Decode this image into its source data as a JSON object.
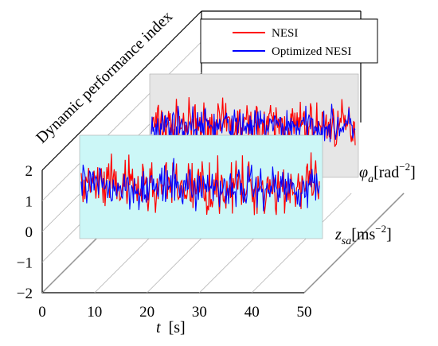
{
  "chart_data": {
    "type": "line",
    "title": "",
    "zlabel": "Dynamic performance index",
    "xlabel": {
      "main": "t",
      "unit": "[s]"
    },
    "xlim": [
      0,
      50
    ],
    "xticks": [
      "0",
      "10",
      "20",
      "30",
      "40",
      "50"
    ],
    "ylim": [
      -2,
      2
    ],
    "yticks": [
      "2",
      "1",
      "0",
      "−1",
      "−2"
    ],
    "depth_labels": [
      {
        "base": "φ",
        "sub": "a",
        "unit": "[rad",
        "exp": "−2",
        "close": "]"
      },
      {
        "base": "z",
        "sub": "sa",
        "unit": "[ms",
        "exp": "−2",
        "close": "]"
      }
    ],
    "legend": {
      "placement": "top-right",
      "entries": [
        {
          "label": "NESI",
          "color": "#ff0000"
        },
        {
          "label": "Optimized NESI",
          "color": "#0000ff"
        }
      ]
    },
    "panels": [
      {
        "label": "z_sa",
        "background": "#ccf7f7",
        "t_range": [
          8,
          50
        ],
        "series": [
          {
            "name": "NESI",
            "color": "#ff0000",
            "amplitude": 1.3,
            "mean": 0
          },
          {
            "name": "Optimized NESI",
            "color": "#0000ff",
            "amplitude": 1.0,
            "mean": 0
          }
        ]
      },
      {
        "label": "φ_a",
        "background": "#e6e6e6",
        "t_range": [
          8,
          50
        ],
        "series": [
          {
            "name": "NESI",
            "color": "#ff0000",
            "amplitude": 1.1,
            "mean": 0
          },
          {
            "name": "Optimized NESI",
            "color": "#0000ff",
            "amplitude": 0.8,
            "mean": 0
          }
        ]
      }
    ],
    "grid": true
  }
}
